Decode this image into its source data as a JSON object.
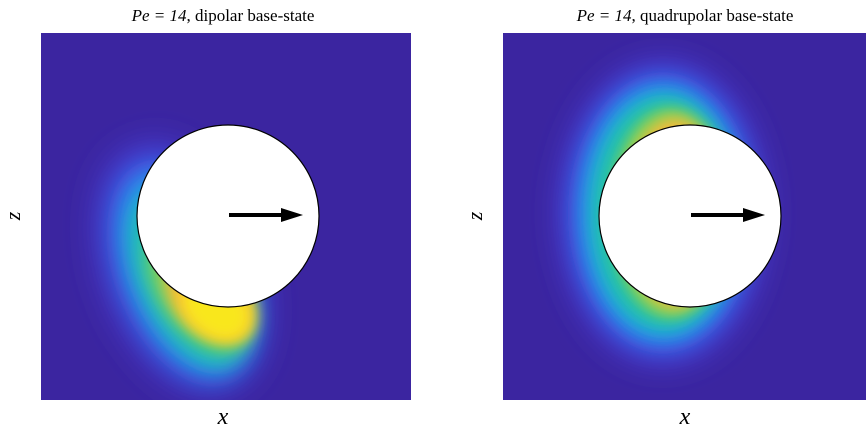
{
  "colors": {
    "background_field": "#3b25a0",
    "sphere_fill": "#ffffff",
    "sphere_stroke": "#000000",
    "arrow": "#000000",
    "colormap": [
      "#3b25a0",
      "#4a4bea",
      "#1fa8e8",
      "#22c3a5",
      "#8fd14f",
      "#f8b93b",
      "#f9e71e"
    ]
  },
  "panels": [
    {
      "title_math": "Pe = 14",
      "title_text": ", dipolar base-state",
      "xlabel": "x",
      "zlabel": "z",
      "variant": "dipolar"
    },
    {
      "title_math": "Pe = 14",
      "title_text": ", quadrupolar base-state",
      "xlabel": "x",
      "zlabel": "z",
      "variant": "quadrupolar"
    }
  ]
}
